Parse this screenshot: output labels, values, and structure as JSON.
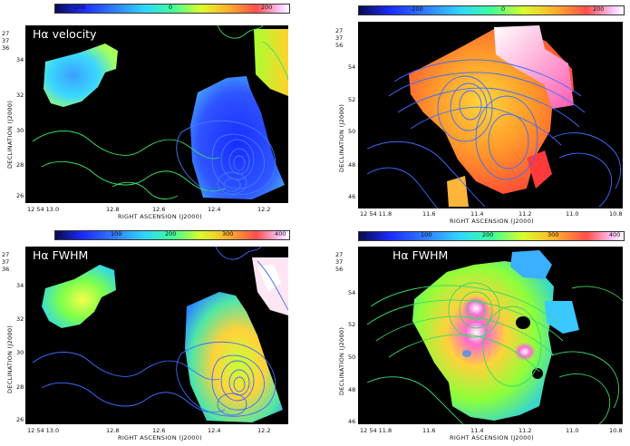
{
  "panels": [
    {
      "label": "Hα velocity",
      "colorbar_ticks": [
        "-200",
        "0",
        "200"
      ],
      "dec_top": "27 37 36",
      "y_ticks": [
        "34",
        "32",
        "30",
        "28",
        "26"
      ],
      "x_ticks": [
        "12 54 13.0",
        "12.8",
        "12.6",
        "12.4",
        "12.2"
      ],
      "x_title": "RIGHT ASCENSION (J2000)",
      "y_title": "DECLINATION (J2000)"
    },
    {
      "label": "Hα velocity",
      "colorbar_ticks": [
        "-200",
        "0",
        "200"
      ],
      "dec_top": "27 37 56",
      "y_ticks": [
        "54",
        "52",
        "50",
        "48",
        "46"
      ],
      "x_ticks": [
        "12 54 11.8",
        "11.6",
        "11.4",
        "11.2",
        "11.0",
        "10.8"
      ],
      "x_title": "RIGHT ASCENSION (J2000)",
      "y_title": "DECLINATION (J2000)"
    },
    {
      "label": "Hα FWHM",
      "colorbar_ticks": [
        "0",
        "100",
        "200",
        "300",
        "400"
      ],
      "dec_top": "27 37 36",
      "y_ticks": [
        "34",
        "32",
        "30",
        "28",
        "26"
      ],
      "x_ticks": [
        "12 54 13.0",
        "12.8",
        "12.6",
        "12.4",
        "12.2"
      ],
      "x_title": "RIGHT ASCENSION (J2000)",
      "y_title": "DECLINATION (J2000)"
    },
    {
      "label": "Hα FWHM",
      "colorbar_ticks": [
        "0",
        "100",
        "200",
        "300",
        "400"
      ],
      "dec_top": "27 37 56",
      "y_ticks": [
        "54",
        "52",
        "50",
        "48",
        "46"
      ],
      "x_ticks": [
        "12 54 11.8",
        "11.6",
        "11.4",
        "11.2",
        "11.0",
        "10.8"
      ],
      "x_title": "RIGHT ASCENSION (J2000)",
      "y_title": "DECLINATION (J2000)"
    }
  ]
}
